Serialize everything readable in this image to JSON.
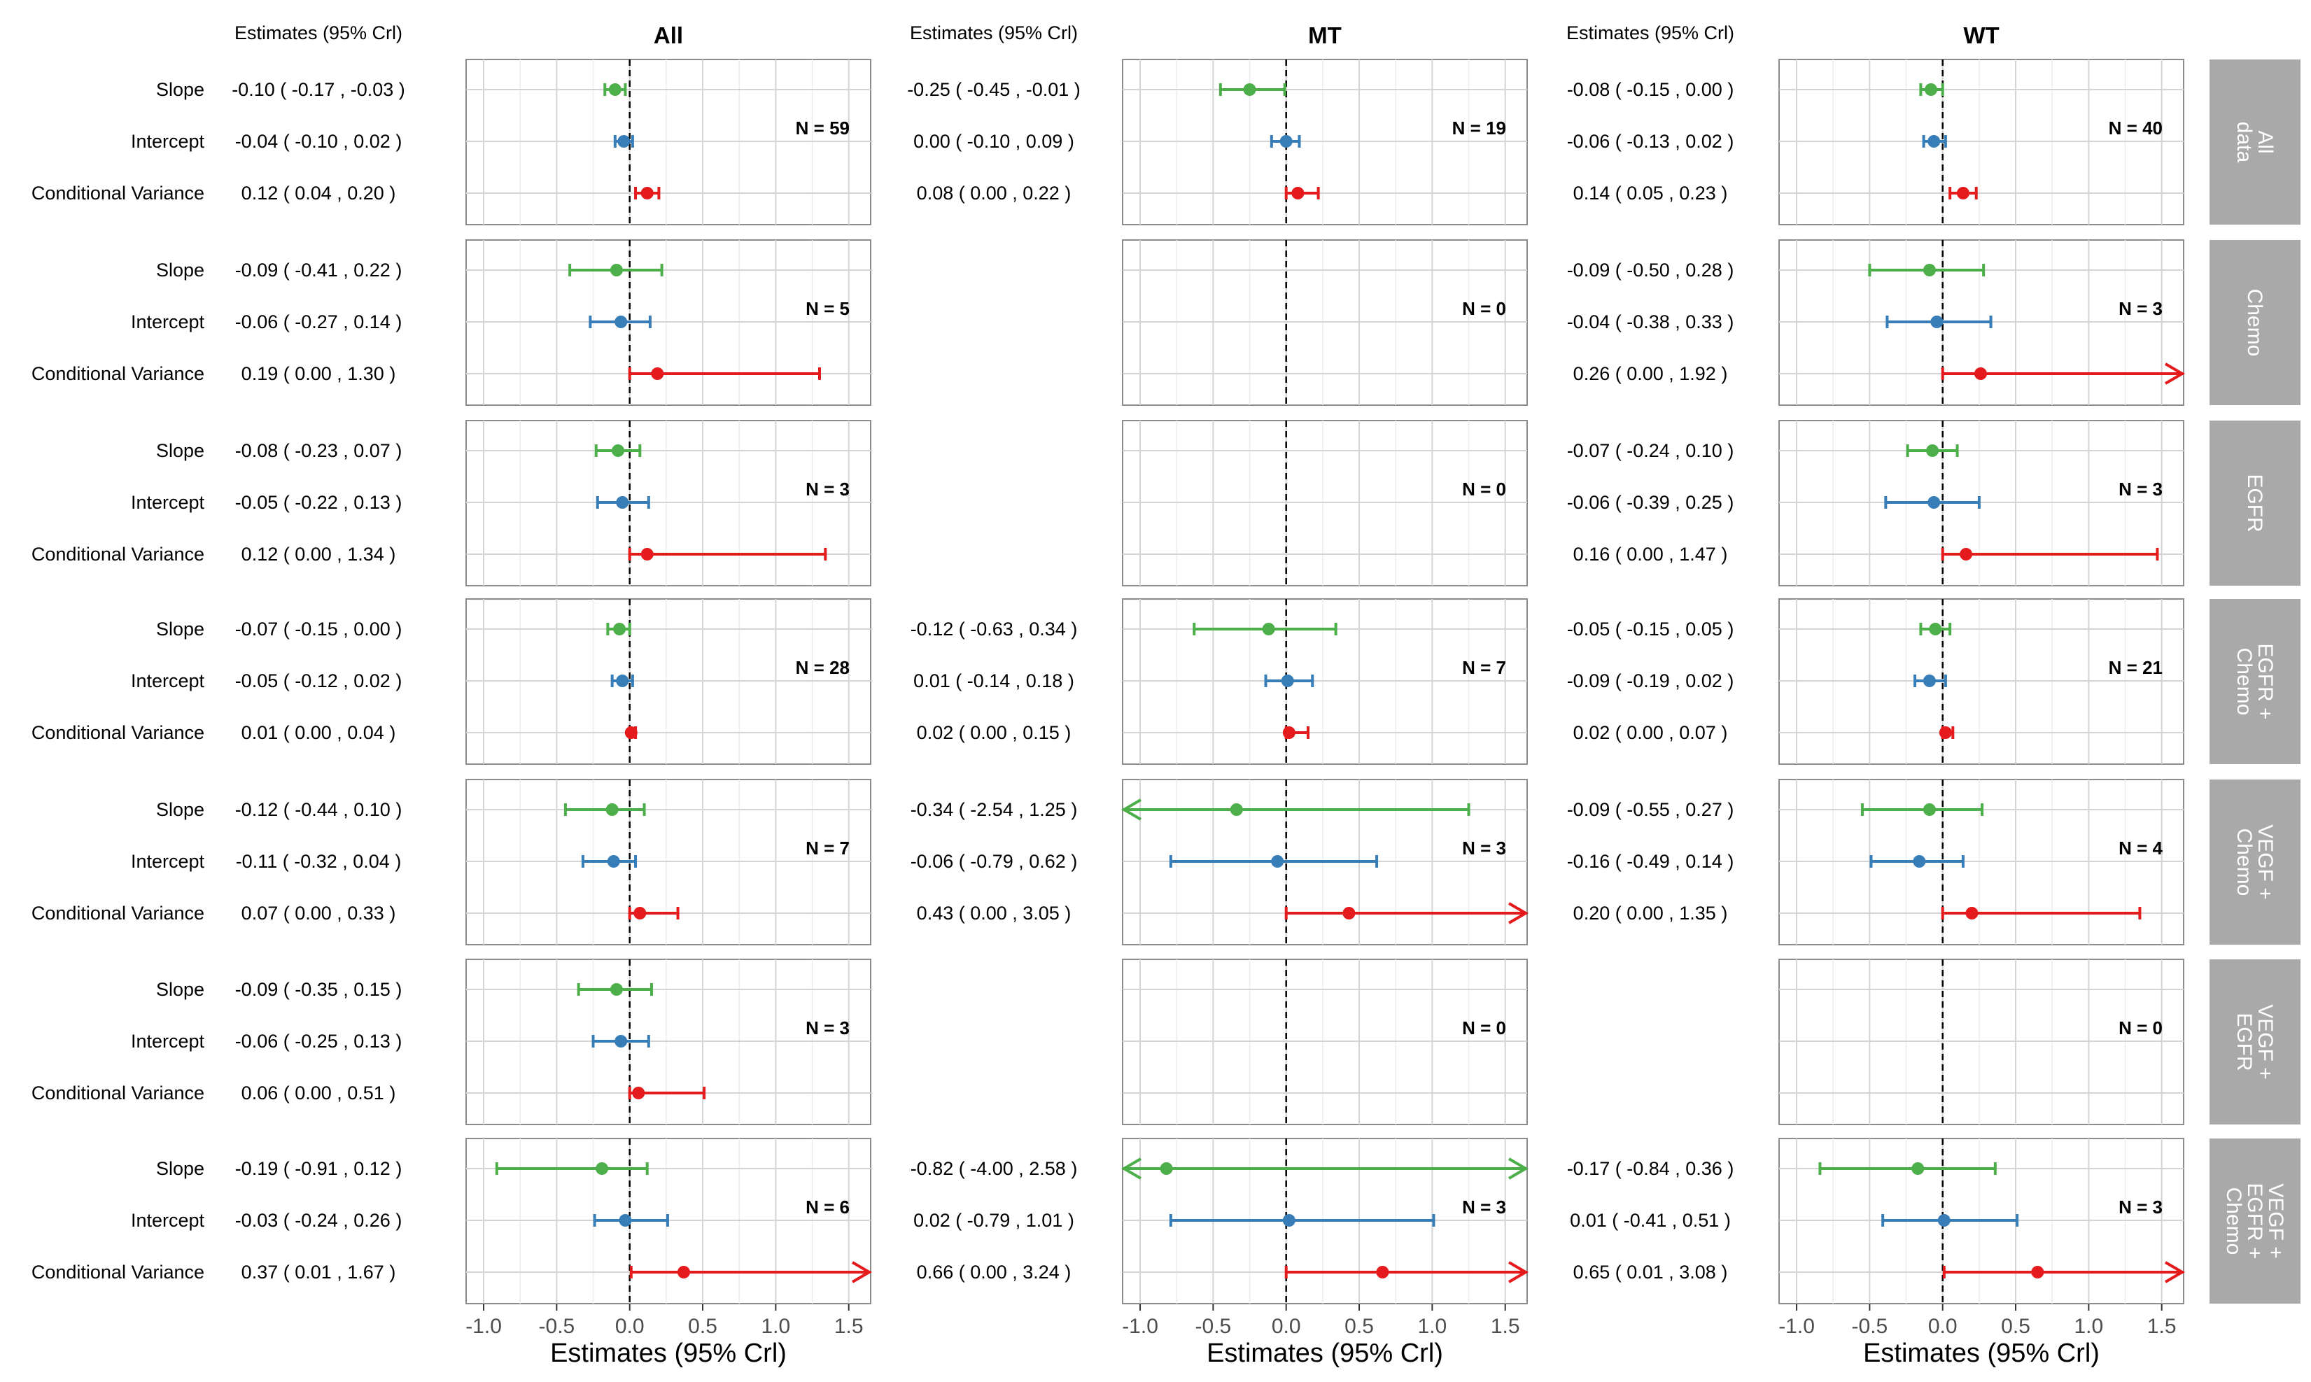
{
  "chart_data": {
    "type": "forest",
    "column_header_estimates": "Estimates (95% Crl)",
    "groups": [
      "All",
      "MT",
      "WT"
    ],
    "strata": [
      "All data",
      "Chemo",
      "EGFR",
      "EGFR + Chemo",
      "VEGF + Chemo",
      "VEGF + EGFR",
      "VEGF + EGFR + Chemo"
    ],
    "row_labels": [
      "Slope",
      "Intercept",
      "Conditional Variance"
    ],
    "series_colors": {
      "Slope": "#4daf4a",
      "Intercept": "#377eb8",
      "Conditional Variance": "#e41a1c"
    },
    "xlabel": "Estimates (95% Crl)",
    "xlim": [
      -1.12,
      1.65
    ],
    "x_ticks": [
      -1.0,
      -0.5,
      0.0,
      0.5,
      1.0,
      1.5
    ],
    "x_tick_labels": [
      "-1.0",
      "-0.5",
      "0.0",
      "0.5",
      "1.0",
      "1.5"
    ],
    "reference_line": 0,
    "panels": [
      [
        {
          "n": "N =  59",
          "rows": [
            {
              "text": "-0.10 ( -0.17 , -0.03 )",
              "est": -0.1,
              "lo": -0.17,
              "hi": -0.03
            },
            {
              "text": "-0.04 ( -0.10 , 0.02 )",
              "est": -0.04,
              "lo": -0.1,
              "hi": 0.02
            },
            {
              "text": "0.12 ( 0.04 , 0.20 )",
              "est": 0.12,
              "lo": 0.04,
              "hi": 0.2
            }
          ]
        },
        {
          "n": "N =  19",
          "rows": [
            {
              "text": "-0.25 ( -0.45 , -0.01 )",
              "est": -0.25,
              "lo": -0.45,
              "hi": -0.01
            },
            {
              "text": "0.00 ( -0.10 , 0.09 )",
              "est": 0.0,
              "lo": -0.1,
              "hi": 0.09
            },
            {
              "text": "0.08 ( 0.00 , 0.22 )",
              "est": 0.08,
              "lo": 0.0,
              "hi": 0.22
            }
          ]
        },
        {
          "n": "N =  40",
          "rows": [
            {
              "text": "-0.08 ( -0.15 , 0.00 )",
              "est": -0.08,
              "lo": -0.15,
              "hi": 0.0
            },
            {
              "text": "-0.06 ( -0.13 , 0.02 )",
              "est": -0.06,
              "lo": -0.13,
              "hi": 0.02
            },
            {
              "text": "0.14 ( 0.05 , 0.23 )",
              "est": 0.14,
              "lo": 0.05,
              "hi": 0.23
            }
          ]
        }
      ],
      [
        {
          "n": "N =  5",
          "rows": [
            {
              "text": "-0.09 ( -0.41 , 0.22 )",
              "est": -0.09,
              "lo": -0.41,
              "hi": 0.22
            },
            {
              "text": "-0.06 ( -0.27 , 0.14 )",
              "est": -0.06,
              "lo": -0.27,
              "hi": 0.14
            },
            {
              "text": "0.19 ( 0.00 , 1.30 )",
              "est": 0.19,
              "lo": 0.0,
              "hi": 1.3
            }
          ]
        },
        {
          "n": "N =  0",
          "rows": []
        },
        {
          "n": "N =  3",
          "rows": [
            {
              "text": "-0.09 ( -0.50 , 0.28 )",
              "est": -0.09,
              "lo": -0.5,
              "hi": 0.28
            },
            {
              "text": "-0.04 ( -0.38 , 0.33 )",
              "est": -0.04,
              "lo": -0.38,
              "hi": 0.33
            },
            {
              "text": "0.26 ( 0.00 , 1.92 )",
              "est": 0.26,
              "lo": 0.0,
              "hi": 1.92
            }
          ]
        }
      ],
      [
        {
          "n": "N =  3",
          "rows": [
            {
              "text": "-0.08 ( -0.23 , 0.07 )",
              "est": -0.08,
              "lo": -0.23,
              "hi": 0.07
            },
            {
              "text": "-0.05 ( -0.22 , 0.13 )",
              "est": -0.05,
              "lo": -0.22,
              "hi": 0.13
            },
            {
              "text": "0.12 ( 0.00 , 1.34 )",
              "est": 0.12,
              "lo": 0.0,
              "hi": 1.34
            }
          ]
        },
        {
          "n": "N =  0",
          "rows": []
        },
        {
          "n": "N =  3",
          "rows": [
            {
              "text": "-0.07 ( -0.24 , 0.10 )",
              "est": -0.07,
              "lo": -0.24,
              "hi": 0.1
            },
            {
              "text": "-0.06 ( -0.39 , 0.25 )",
              "est": -0.06,
              "lo": -0.39,
              "hi": 0.25
            },
            {
              "text": "0.16 ( 0.00 , 1.47 )",
              "est": 0.16,
              "lo": 0.0,
              "hi": 1.47
            }
          ]
        }
      ],
      [
        {
          "n": "N =  28",
          "rows": [
            {
              "text": "-0.07 ( -0.15 , 0.00 )",
              "est": -0.07,
              "lo": -0.15,
              "hi": 0.0
            },
            {
              "text": "-0.05 ( -0.12 , 0.02 )",
              "est": -0.05,
              "lo": -0.12,
              "hi": 0.02
            },
            {
              "text": "0.01 ( 0.00 , 0.04 )",
              "est": 0.01,
              "lo": 0.0,
              "hi": 0.04
            }
          ]
        },
        {
          "n": "N =  7",
          "rows": [
            {
              "text": "-0.12 ( -0.63 , 0.34 )",
              "est": -0.12,
              "lo": -0.63,
              "hi": 0.34
            },
            {
              "text": "0.01 ( -0.14 , 0.18 )",
              "est": 0.01,
              "lo": -0.14,
              "hi": 0.18
            },
            {
              "text": "0.02 ( 0.00 , 0.15 )",
              "est": 0.02,
              "lo": 0.0,
              "hi": 0.15
            }
          ]
        },
        {
          "n": "N =  21",
          "rows": [
            {
              "text": "-0.05 ( -0.15 , 0.05 )",
              "est": -0.05,
              "lo": -0.15,
              "hi": 0.05
            },
            {
              "text": "-0.09 ( -0.19 , 0.02 )",
              "est": -0.09,
              "lo": -0.19,
              "hi": 0.02
            },
            {
              "text": "0.02 ( 0.00 , 0.07 )",
              "est": 0.02,
              "lo": 0.0,
              "hi": 0.07
            }
          ]
        }
      ],
      [
        {
          "n": "N =  7",
          "rows": [
            {
              "text": "-0.12 ( -0.44 , 0.10 )",
              "est": -0.12,
              "lo": -0.44,
              "hi": 0.1
            },
            {
              "text": "-0.11 ( -0.32 , 0.04 )",
              "est": -0.11,
              "lo": -0.32,
              "hi": 0.04
            },
            {
              "text": "0.07 ( 0.00 , 0.33 )",
              "est": 0.07,
              "lo": 0.0,
              "hi": 0.33
            }
          ]
        },
        {
          "n": "N =  3",
          "rows": [
            {
              "text": "-0.34 ( -2.54 , 1.25 )",
              "est": -0.34,
              "lo": -2.54,
              "hi": 1.25
            },
            {
              "text": "-0.06 ( -0.79 , 0.62 )",
              "est": -0.06,
              "lo": -0.79,
              "hi": 0.62
            },
            {
              "text": "0.43 ( 0.00 , 3.05 )",
              "est": 0.43,
              "lo": 0.0,
              "hi": 3.05
            }
          ]
        },
        {
          "n": "N =  4",
          "rows": [
            {
              "text": "-0.09 ( -0.55 , 0.27 )",
              "est": -0.09,
              "lo": -0.55,
              "hi": 0.27
            },
            {
              "text": "-0.16 ( -0.49 , 0.14 )",
              "est": -0.16,
              "lo": -0.49,
              "hi": 0.14
            },
            {
              "text": "0.20 ( 0.00 , 1.35 )",
              "est": 0.2,
              "lo": 0.0,
              "hi": 1.35
            }
          ]
        }
      ],
      [
        {
          "n": "N =  3",
          "rows": [
            {
              "text": "-0.09 ( -0.35 , 0.15 )",
              "est": -0.09,
              "lo": -0.35,
              "hi": 0.15
            },
            {
              "text": "-0.06 ( -0.25 , 0.13 )",
              "est": -0.06,
              "lo": -0.25,
              "hi": 0.13
            },
            {
              "text": "0.06 ( 0.00 , 0.51 )",
              "est": 0.06,
              "lo": 0.0,
              "hi": 0.51
            }
          ]
        },
        {
          "n": "N =  0",
          "rows": []
        },
        {
          "n": "N =  0",
          "rows": []
        }
      ],
      [
        {
          "n": "N =  6",
          "rows": [
            {
              "text": "-0.19 ( -0.91 , 0.12 )",
              "est": -0.19,
              "lo": -0.91,
              "hi": 0.12
            },
            {
              "text": "-0.03 ( -0.24 , 0.26 )",
              "est": -0.03,
              "lo": -0.24,
              "hi": 0.26
            },
            {
              "text": "0.37 ( 0.01 , 1.67 )",
              "est": 0.37,
              "lo": 0.01,
              "hi": 1.67
            }
          ]
        },
        {
          "n": "N =  3",
          "rows": [
            {
              "text": "-0.82 ( -4.00 , 2.58 )",
              "est": -0.82,
              "lo": -4.0,
              "hi": 2.58
            },
            {
              "text": "0.02 ( -0.79 , 1.01 )",
              "est": 0.02,
              "lo": -0.79,
              "hi": 1.01
            },
            {
              "text": "0.66 ( 0.00 , 3.24 )",
              "est": 0.66,
              "lo": 0.0,
              "hi": 3.24
            }
          ]
        },
        {
          "n": "N =  3",
          "rows": [
            {
              "text": "-0.17 ( -0.84 , 0.36 )",
              "est": -0.17,
              "lo": -0.84,
              "hi": 0.36
            },
            {
              "text": "0.01 ( -0.41 , 0.51 )",
              "est": 0.01,
              "lo": -0.41,
              "hi": 0.51
            },
            {
              "text": "0.65 ( 0.01 , 3.08 )",
              "est": 0.65,
              "lo": 0.01,
              "hi": 3.08
            }
          ]
        }
      ]
    ]
  }
}
